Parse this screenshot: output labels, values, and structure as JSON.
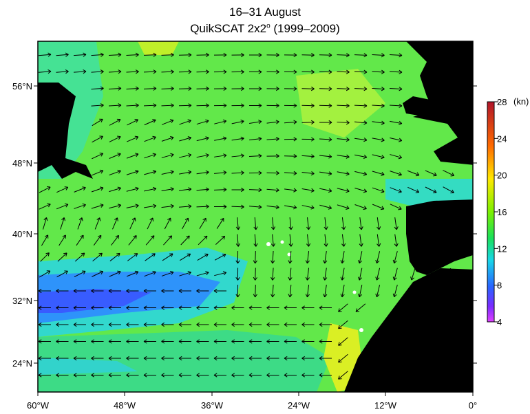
{
  "title": {
    "line1": "16–31 August",
    "line2": "QuikSCAT 2x2",
    "superscript": "o",
    "years": "(1999–2009)"
  },
  "axes": {
    "x_ticks": [
      "60°W",
      "48°W",
      "36°W",
      "24°W",
      "12°W",
      "0°"
    ],
    "y_ticks": [
      "56°N",
      "48°N",
      "40°N",
      "32°N",
      "24°N"
    ]
  },
  "colorbar": {
    "unit": "(kn)",
    "ticks": [
      "28",
      "24",
      "20",
      "16",
      "12",
      "8",
      "4"
    ],
    "colors": [
      "#c8102e",
      "#ff8a00",
      "#ffd400",
      "#c8ff00",
      "#2ee82e",
      "#22d4e8",
      "#2b6fff",
      "#7a2bff",
      "#d23cff"
    ]
  },
  "map": {
    "ocean_color": "#6cec3a",
    "land_color": "#000000",
    "vector_color": "#000000"
  }
}
